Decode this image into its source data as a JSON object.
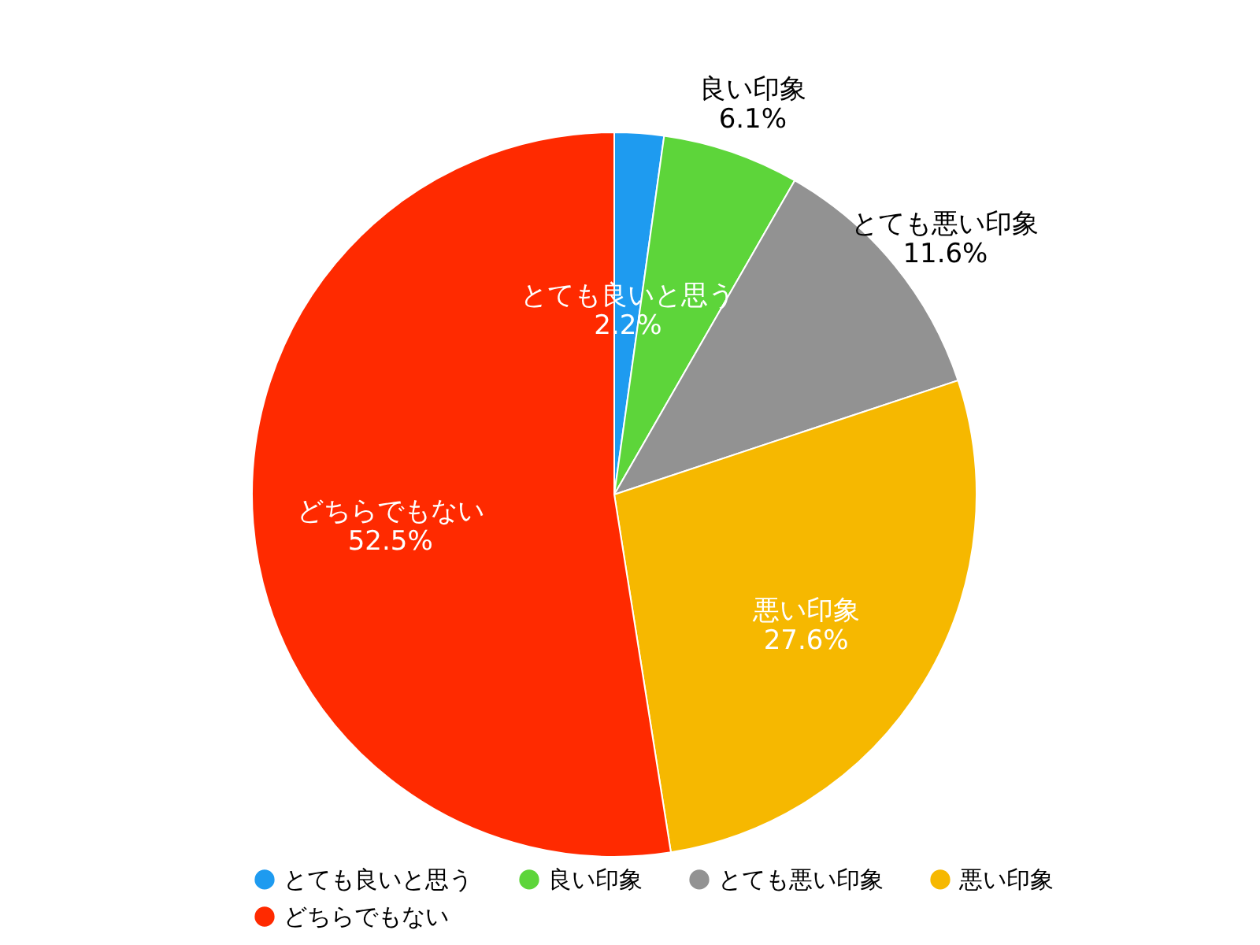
{
  "chart_data": {
    "type": "pie",
    "categories": [
      "とても良いと思う",
      "良い印象",
      "とても悪い印象",
      "悪い印象",
      "どちらでもない"
    ],
    "values": [
      2.2,
      6.1,
      11.6,
      27.6,
      52.5
    ],
    "value_labels": [
      "2.2%",
      "6.1%",
      "11.6%",
      "27.6%",
      "52.5%"
    ],
    "colors": [
      "#1e9bf0",
      "#5dd53a",
      "#929292",
      "#f6b800",
      "#ff2a00"
    ],
    "legend": "bottom"
  }
}
